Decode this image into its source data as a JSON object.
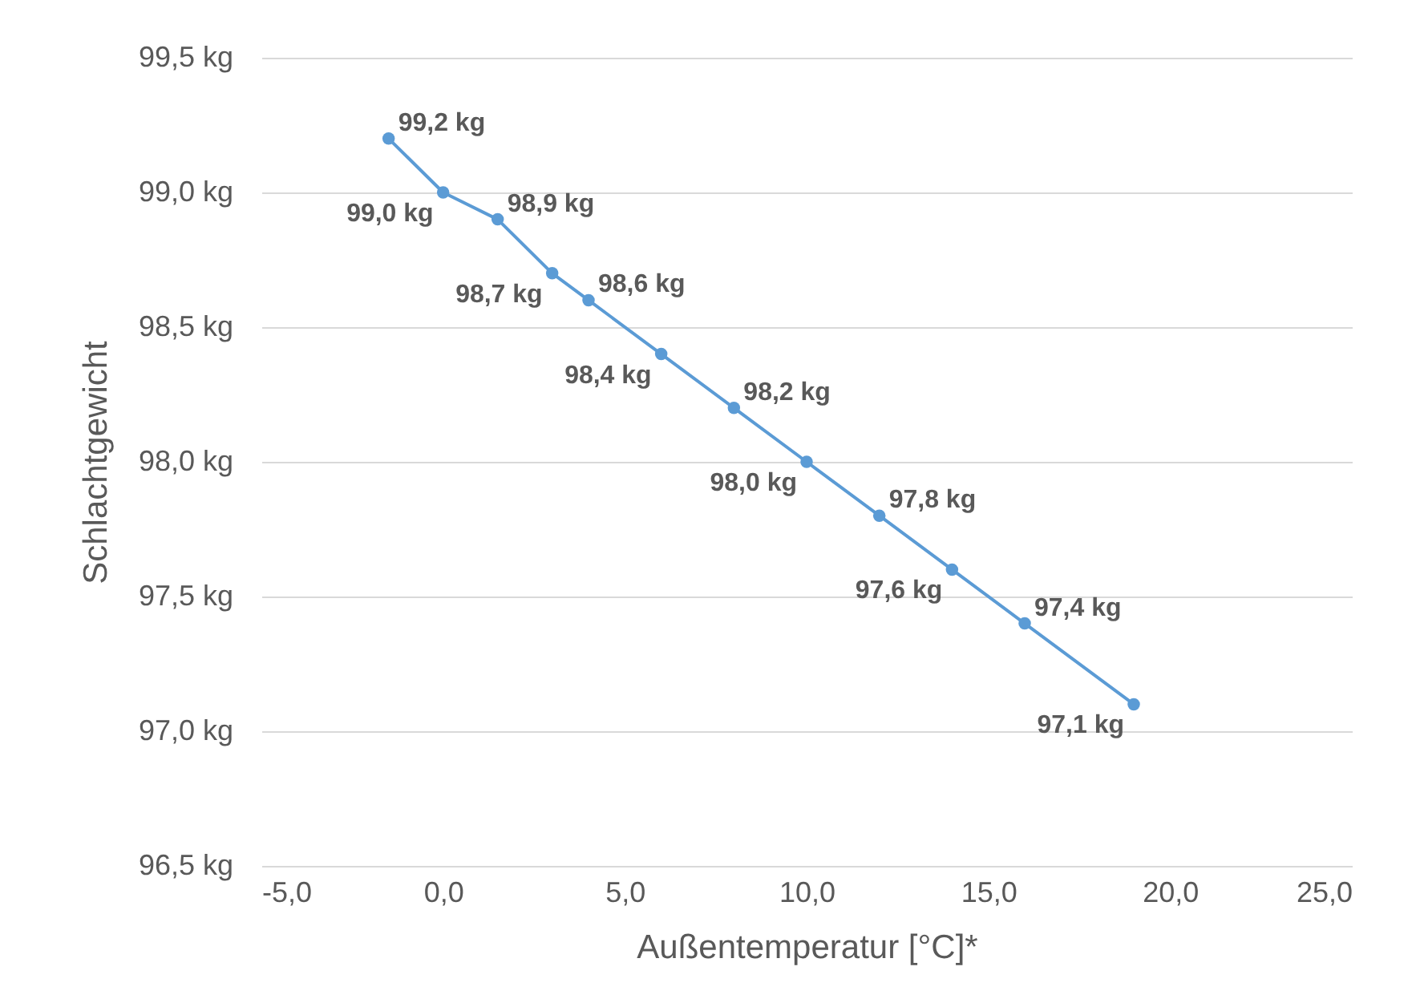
{
  "chart_data": {
    "type": "line",
    "xlabel": "Außentemperatur [°C]*",
    "ylabel": "Schlachtgewicht",
    "x": [
      -1.5,
      0,
      1.5,
      3,
      4,
      6,
      8,
      10,
      12,
      14,
      16,
      19
    ],
    "series": [
      {
        "color": "#5b9bd5",
        "values": [
          99.2,
          99.0,
          98.9,
          98.7,
          98.6,
          98.4,
          98.2,
          98.0,
          97.8,
          97.6,
          97.4,
          97.1
        ],
        "value_labels": [
          "99,2 kg",
          "99,0 kg",
          "98,9 kg",
          "98,7 kg",
          "98,6 kg",
          "98,4 kg",
          "98,2 kg",
          "98,0 kg",
          "97,8 kg",
          "97,6 kg",
          "97,4 kg",
          "97,1 kg"
        ]
      }
    ],
    "xlim": [
      -5,
      25
    ],
    "xticks": [
      {
        "value": -5,
        "label": "-5,0"
      },
      {
        "value": 0,
        "label": "0,0"
      },
      {
        "value": 5,
        "label": "5,0"
      },
      {
        "value": 10,
        "label": "10,0"
      },
      {
        "value": 15,
        "label": "15,0"
      },
      {
        "value": 20,
        "label": "20,0"
      },
      {
        "value": 25,
        "label": "25,0"
      }
    ],
    "ylim": [
      96.5,
      99.5
    ],
    "yticks": [
      {
        "value": 96.5,
        "label": "96,5 kg"
      },
      {
        "value": 97,
        "label": "97,0 kg"
      },
      {
        "value": 97.5,
        "label": "97,5 kg"
      },
      {
        "value": 98,
        "label": "98,0 kg"
      },
      {
        "value": 98.5,
        "label": "98,5 kg"
      },
      {
        "value": 99,
        "label": "99,0 kg"
      },
      {
        "value": 99.5,
        "label": "99,5 kg"
      }
    ],
    "grid": "y",
    "marker": "circle",
    "line_style": "solid"
  }
}
